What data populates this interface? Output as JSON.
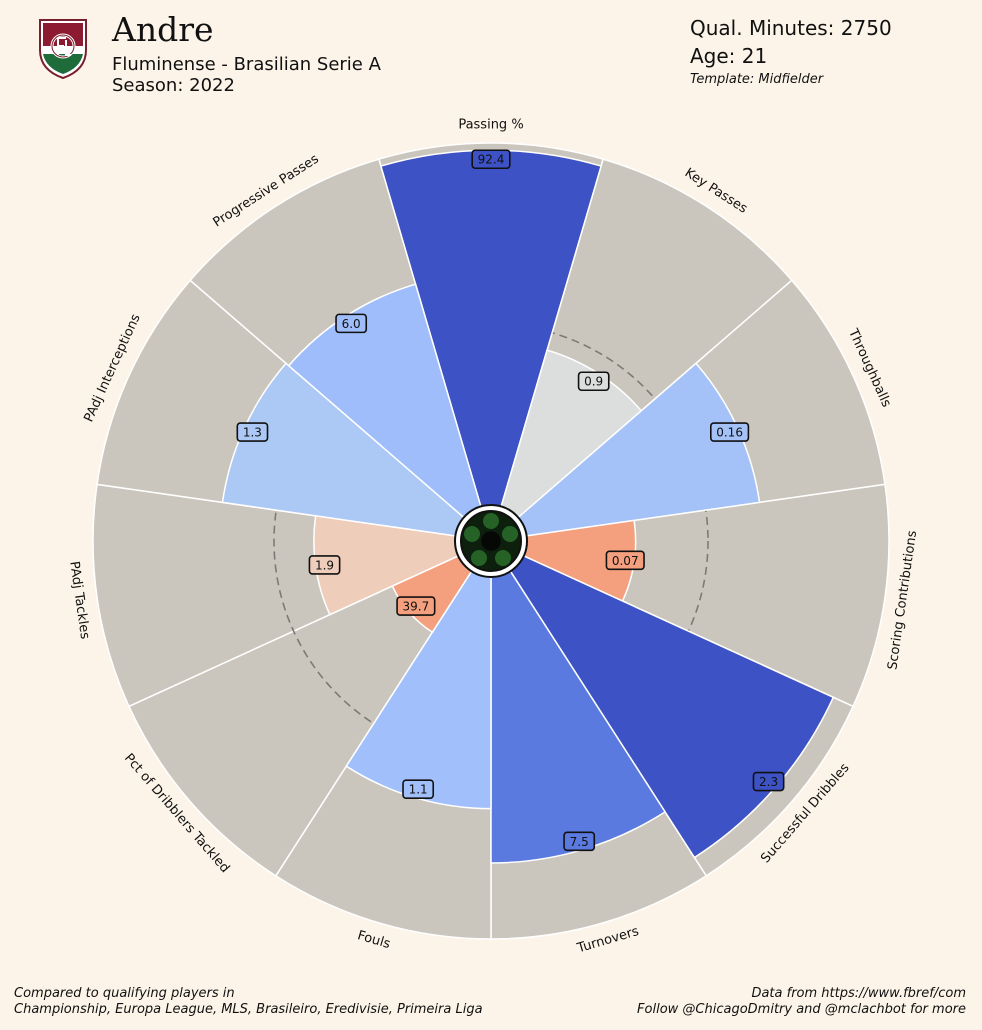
{
  "header": {
    "player_name": "Andre",
    "team_league": "Fluminense - Brasilian Serie A",
    "season": "Season: 2022",
    "minutes": "Qual. Minutes: 2750",
    "age": "Age: 21",
    "template": "Template: Midfielder"
  },
  "footer": {
    "left_line1": "Compared to qualifying players in",
    "left_line2": "Championship, Europa League, MLS, Brasileiro, Eredivisie, Primeira Liga",
    "right_line1": "Data from https://www.fbref/com",
    "right_line2": "Follow @ChicagoDmitry and @mclachbot for more"
  },
  "crest_icon": "fluminense-crest-icon",
  "center_icon": "football-icon",
  "colors": {
    "background": "#fcf4e8",
    "slice_background": "#cbc6bd",
    "divider": "#ffffff"
  },
  "chart_data": {
    "type": "pizza",
    "percentile_range": [
      0,
      100
    ],
    "reference_ring_percentile": 50,
    "categories": [
      {
        "label": "Passing %",
        "value": "92.4",
        "percentile": 98,
        "color": "#3d52c4"
      },
      {
        "label": "Key Passes",
        "value": "0.9",
        "percentile": 45,
        "color": "#dcdddd"
      },
      {
        "label": "Throughballs",
        "value": "0.16",
        "percentile": 65,
        "color": "#a4c1f8"
      },
      {
        "label": "Scoring Contributions",
        "value": "0.07",
        "percentile": 30,
        "color": "#f4a07e"
      },
      {
        "label": "Successful Dribbles",
        "value": "2.3",
        "percentile": 94,
        "color": "#3d52c4"
      },
      {
        "label": "Turnovers",
        "value": "7.5",
        "percentile": 79,
        "color": "#5b7adf"
      },
      {
        "label": "Fouls",
        "value": "1.1",
        "percentile": 64,
        "color": "#a1c0fb"
      },
      {
        "label": "Pct of Dribblers Tackled",
        "value": "39.7",
        "percentile": 20,
        "color": "#f4a07e"
      },
      {
        "label": "PAdj Tackles",
        "value": "1.9",
        "percentile": 39,
        "color": "#efcdbb"
      },
      {
        "label": "PAdj Interceptions",
        "value": "1.3",
        "percentile": 65,
        "color": "#acc8f5"
      },
      {
        "label": "Progressive Passes",
        "value": "6.0",
        "percentile": 64,
        "color": "#9fbdfa"
      }
    ]
  }
}
